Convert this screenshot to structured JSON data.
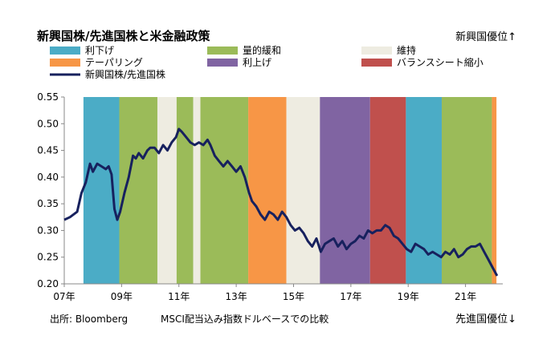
{
  "chart_data": {
    "type": "line",
    "title": "新興国株/先進国株と米金融政策",
    "note_top": "新興国優位↑",
    "note_bottom": "先進国優位↓",
    "source": "出所: Bloomberg",
    "caption": "MSCI配当込み指数ドルベースでの比較",
    "ylim": [
      0.2,
      0.55
    ],
    "y_ticks": [
      "0.20",
      "0.25",
      "0.30",
      "0.35",
      "0.40",
      "0.45",
      "0.50",
      "0.55"
    ],
    "y_tick_values": [
      0.2,
      0.25,
      0.3,
      0.35,
      0.4,
      0.45,
      0.5,
      0.55
    ],
    "xlim": [
      2007.0,
      2022.3
    ],
    "x_ticks": [
      "07年",
      "09年",
      "11年",
      "13年",
      "15年",
      "17年",
      "19年",
      "21年"
    ],
    "x_tick_values": [
      2007,
      2009,
      2011,
      2013,
      2015,
      2017,
      2019,
      2021
    ],
    "legend": [
      {
        "label": "利下げ",
        "color": "#4bacc6",
        "kind": "patch"
      },
      {
        "label": "量的緩和",
        "color": "#9bbb59",
        "kind": "patch"
      },
      {
        "label": "維持",
        "color": "#eeece1",
        "kind": "patch"
      },
      {
        "label": "テーパリング",
        "color": "#f79646",
        "kind": "patch"
      },
      {
        "label": "利上げ",
        "color": "#8064a2",
        "kind": "patch"
      },
      {
        "label": "バランスシート縮小",
        "color": "#c0504d",
        "kind": "patch"
      },
      {
        "label": "新興国株/先進国株",
        "color": "#17215e",
        "kind": "line"
      }
    ],
    "regimes": [
      {
        "phase": "利下げ",
        "start": 2007.67,
        "end": 2008.92
      },
      {
        "phase": "量的緩和",
        "start": 2008.92,
        "end": 2010.25
      },
      {
        "phase": "維持",
        "start": 2010.25,
        "end": 2010.92
      },
      {
        "phase": "量的緩和",
        "start": 2010.92,
        "end": 2011.5
      },
      {
        "phase": "維持",
        "start": 2011.5,
        "end": 2011.75
      },
      {
        "phase": "量的緩和",
        "start": 2011.75,
        "end": 2013.42
      },
      {
        "phase": "テーパリング",
        "start": 2013.42,
        "end": 2014.75
      },
      {
        "phase": "維持",
        "start": 2014.75,
        "end": 2015.92
      },
      {
        "phase": "利上げ",
        "start": 2015.92,
        "end": 2017.67
      },
      {
        "phase": "バランスシート縮小",
        "start": 2017.67,
        "end": 2018.92
      },
      {
        "phase": "利下げ",
        "start": 2018.92,
        "end": 2020.17
      },
      {
        "phase": "量的緩和",
        "start": 2020.17,
        "end": 2021.92
      },
      {
        "phase": "テーパリング",
        "start": 2021.92,
        "end": 2022.08
      }
    ],
    "series": [
      {
        "name": "新興国株/先進国株",
        "color": "#17215e",
        "x": [
          2007.0,
          2007.2,
          2007.45,
          2007.6,
          2007.75,
          2007.9,
          2008.0,
          2008.15,
          2008.3,
          2008.45,
          2008.55,
          2008.65,
          2008.75,
          2008.85,
          2008.95,
          2009.1,
          2009.25,
          2009.4,
          2009.5,
          2009.6,
          2009.75,
          2009.9,
          2010.0,
          2010.15,
          2010.3,
          2010.45,
          2010.6,
          2010.75,
          2010.9,
          2011.0,
          2011.1,
          2011.25,
          2011.4,
          2011.55,
          2011.7,
          2011.85,
          2012.0,
          2012.1,
          2012.25,
          2012.4,
          2012.55,
          2012.7,
          2012.85,
          2013.0,
          2013.15,
          2013.3,
          2013.45,
          2013.55,
          2013.7,
          2013.85,
          2014.0,
          2014.15,
          2014.3,
          2014.45,
          2014.6,
          2014.75,
          2014.9,
          2015.05,
          2015.2,
          2015.35,
          2015.5,
          2015.65,
          2015.8,
          2015.95,
          2016.1,
          2016.25,
          2016.4,
          2016.55,
          2016.7,
          2016.85,
          2017.0,
          2017.15,
          2017.3,
          2017.45,
          2017.6,
          2017.75,
          2017.9,
          2018.05,
          2018.2,
          2018.35,
          2018.5,
          2018.65,
          2018.8,
          2018.95,
          2019.1,
          2019.25,
          2019.4,
          2019.55,
          2019.7,
          2019.85,
          2020.0,
          2020.15,
          2020.3,
          2020.45,
          2020.6,
          2020.75,
          2020.9,
          2021.05,
          2021.2,
          2021.35,
          2021.5,
          2021.65,
          2021.8,
          2021.95,
          2022.1
        ],
        "y": [
          0.32,
          0.325,
          0.335,
          0.37,
          0.39,
          0.425,
          0.41,
          0.425,
          0.42,
          0.415,
          0.42,
          0.405,
          0.34,
          0.32,
          0.335,
          0.37,
          0.4,
          0.44,
          0.435,
          0.445,
          0.435,
          0.45,
          0.455,
          0.455,
          0.445,
          0.46,
          0.45,
          0.465,
          0.475,
          0.49,
          0.485,
          0.475,
          0.465,
          0.46,
          0.465,
          0.46,
          0.47,
          0.46,
          0.44,
          0.43,
          0.42,
          0.43,
          0.42,
          0.41,
          0.42,
          0.4,
          0.37,
          0.355,
          0.345,
          0.33,
          0.32,
          0.335,
          0.33,
          0.32,
          0.335,
          0.325,
          0.31,
          0.3,
          0.305,
          0.295,
          0.28,
          0.27,
          0.285,
          0.26,
          0.275,
          0.28,
          0.285,
          0.27,
          0.28,
          0.265,
          0.275,
          0.28,
          0.29,
          0.285,
          0.3,
          0.295,
          0.3,
          0.3,
          0.31,
          0.305,
          0.29,
          0.285,
          0.275,
          0.265,
          0.26,
          0.275,
          0.27,
          0.265,
          0.255,
          0.26,
          0.255,
          0.25,
          0.26,
          0.255,
          0.265,
          0.25,
          0.255,
          0.265,
          0.27,
          0.27,
          0.275,
          0.26,
          0.245,
          0.23,
          0.215
        ]
      }
    ]
  }
}
